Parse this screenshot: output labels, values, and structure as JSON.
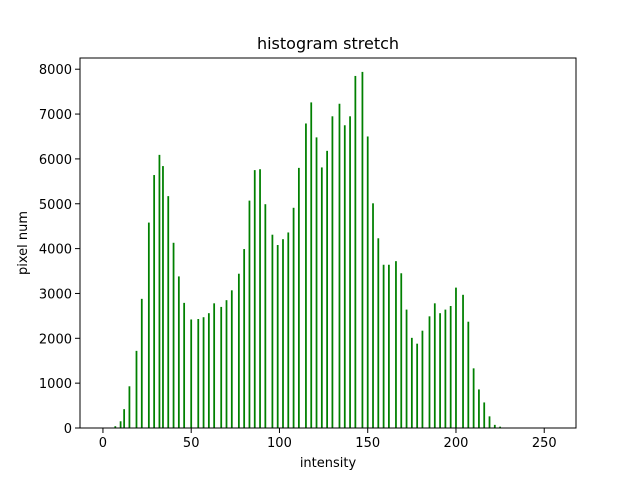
{
  "chart_data": {
    "type": "bar",
    "title": "histogram stretch",
    "xlabel": "intensity",
    "ylabel": "pixel num",
    "xlim": [
      -13,
      268
    ],
    "ylim": [
      0,
      8250
    ],
    "xticks": [
      0,
      50,
      100,
      150,
      200,
      250
    ],
    "yticks": [
      0,
      1000,
      2000,
      3000,
      4000,
      5000,
      6000,
      7000,
      8000
    ],
    "bar_color": "#008000",
    "bar_width": 1,
    "grid": false,
    "series": [
      {
        "x": [
          4,
          7,
          10,
          12,
          15,
          19,
          22,
          26,
          29,
          32,
          34,
          37,
          40,
          43,
          46,
          50,
          54,
          57,
          60,
          63,
          67,
          70,
          73,
          77,
          80,
          83,
          86,
          89,
          92,
          96,
          99,
          102,
          105,
          108,
          111,
          115,
          118,
          121,
          124,
          127,
          130,
          134,
          137,
          140,
          143,
          147,
          150,
          153,
          156,
          159,
          162,
          166,
          169,
          172,
          175,
          178,
          181,
          185,
          188,
          191,
          194,
          197,
          200,
          204,
          207,
          210,
          213,
          216,
          219,
          222,
          225,
          229,
          232,
          235,
          238
        ],
        "values": [
          10,
          40,
          150,
          420,
          930,
          1720,
          2880,
          4580,
          5640,
          6090,
          5840,
          5170,
          4130,
          3380,
          2790,
          2420,
          2430,
          2470,
          2560,
          2780,
          2700,
          2850,
          3070,
          3440,
          3990,
          5070,
          5750,
          5770,
          4990,
          4310,
          4080,
          4210,
          4360,
          4910,
          5800,
          6790,
          7260,
          6480,
          5810,
          6180,
          6950,
          7230,
          6750,
          6950,
          7850,
          7940,
          6500,
          5010,
          4230,
          3640,
          3640,
          3720,
          3450,
          2640,
          2010,
          1880,
          2170,
          2490,
          2780,
          2560,
          2640,
          2720,
          3130,
          2970,
          2370,
          1330,
          860,
          570,
          260,
          70,
          30,
          10,
          0,
          0,
          0
        ]
      }
    ]
  }
}
